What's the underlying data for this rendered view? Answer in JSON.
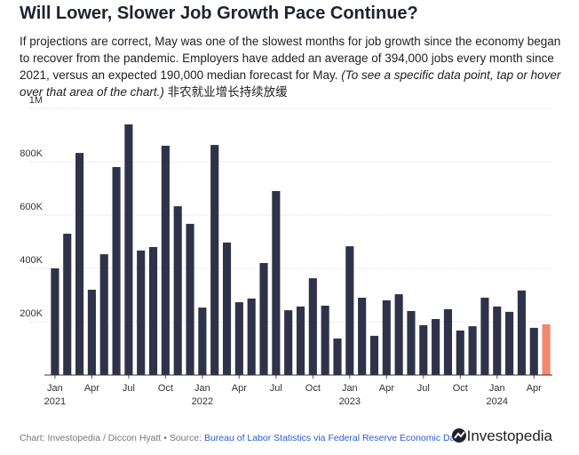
{
  "chart_data": {
    "type": "bar",
    "title": "Will Lower, Slower Job Growth Pace Continue?",
    "subtitle": "If projections are correct, May was one of the slowest months for job growth since the economy began to recover from the pandemic. Employers have added an average of 394,000 jobs every month since 2021, versus an expected 190,000 median forecast for May.",
    "subtitle_note": "(To see a specific data point, tap or hover over that area of the chart.)",
    "subtitle_extra": "非农就业增长持续放缓",
    "source_prefix": "Chart: Investopedia / Diccon Hyatt • Source:",
    "source_link": "Bureau of Labor Statistics via Federal Reserve Economic Data",
    "logo": "Investopedia",
    "categories": [
      "Jan 2021",
      null,
      null,
      "Apr",
      null,
      null,
      "Jul",
      null,
      null,
      "Oct",
      null,
      null,
      "Jan 2022",
      null,
      null,
      "Apr",
      null,
      null,
      "Jul",
      null,
      null,
      "Oct",
      null,
      null,
      "Jan 2023",
      null,
      null,
      "Apr",
      null,
      null,
      "Jul",
      null,
      null,
      "Oct",
      null,
      null,
      "Jan 2024",
      null,
      null,
      "Apr",
      null
    ],
    "values": [
      400000,
      530000,
      833000,
      320000,
      453000,
      780000,
      940000,
      467000,
      480000,
      860000,
      633000,
      567000,
      253000,
      863000,
      497000,
      273000,
      287000,
      420000,
      690000,
      243000,
      257000,
      363000,
      260000,
      137000,
      483000,
      290000,
      147000,
      280000,
      303000,
      240000,
      187000,
      210000,
      247000,
      167000,
      183000,
      290000,
      257000,
      237000,
      317000,
      177000,
      190000
    ],
    "color": "#2f3349",
    "highlight_color": "#f4876a",
    "highlight_index": 40,
    "ylim": [
      0,
      1000000
    ],
    "yticks": [
      {
        "value": 200000,
        "label": "200K"
      },
      {
        "value": 400000,
        "label": "400K"
      },
      {
        "value": 600000,
        "label": "600K"
      },
      {
        "value": 800000,
        "label": "800K"
      },
      {
        "value": 1000000,
        "label": "1M"
      }
    ],
    "grid": true
  }
}
